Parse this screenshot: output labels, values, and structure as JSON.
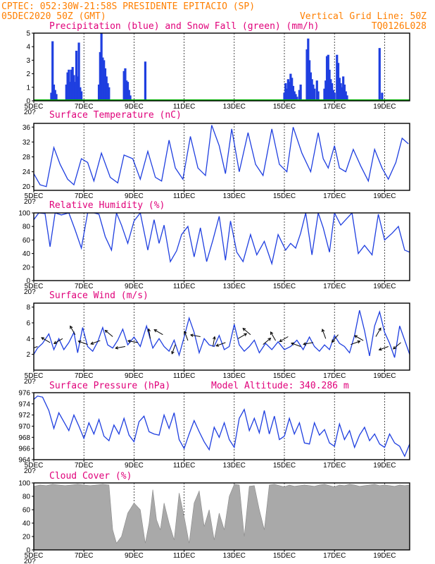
{
  "header": {
    "source_line": "CPTEC:  052:30W-21:58S  PRESIDENTE EPITACIO (SP)",
    "date_line": "05DEC2020 50Z (GMT)",
    "grid_note": "Vertical Grid Line: 50Z",
    "code": "TQ0126L028"
  },
  "x_axis": {
    "start_day": "5DEC",
    "end_day": "20DEC",
    "tick_labels": [
      "5DEC",
      "7DEC",
      "9DEC",
      "11DEC",
      "13DEC",
      "15DEC",
      "17DEC",
      "19DEC"
    ],
    "overlap_fragment": "20?"
  },
  "colors": {
    "header": "#ff7f00",
    "panel_title": "#e0007a",
    "precip": "#1f3fe0",
    "snow": "#00b000",
    "line": "#1f3fe0",
    "cloud": "#a9a9a9",
    "arrow": "#000000"
  },
  "chart_data": [
    {
      "type": "bar",
      "title": "Precipitation (blue) and Snow Fall (green) (mm/h)",
      "ylim": [
        0,
        5
      ],
      "yticks": [
        0,
        1,
        2,
        3,
        4,
        5
      ],
      "x_start_day": 5,
      "x_end_day": 20,
      "series": [
        {
          "name": "Precipitation",
          "x": [
            5.7,
            5.75,
            5.8,
            5.85,
            5.9,
            6.3,
            6.35,
            6.4,
            6.45,
            6.5,
            6.55,
            6.6,
            6.65,
            6.7,
            6.75,
            6.8,
            6.85,
            6.9,
            7.6,
            7.65,
            7.7,
            7.75,
            7.8,
            7.85,
            7.9,
            7.95,
            8.0,
            8.6,
            8.65,
            8.7,
            8.75,
            8.8,
            8.85,
            9.45,
            15.0,
            15.05,
            15.1,
            15.15,
            15.2,
            15.25,
            15.3,
            15.35,
            15.4,
            15.45,
            15.5,
            15.6,
            15.65,
            15.9,
            15.95,
            16.0,
            16.05,
            16.1,
            16.15,
            16.2,
            16.3,
            16.35,
            16.6,
            16.65,
            16.7,
            16.75,
            16.8,
            16.85,
            16.9,
            16.95,
            17.0,
            17.1,
            17.15,
            17.2,
            17.25,
            17.3,
            17.35,
            17.4,
            17.45,
            17.5,
            18.8,
            18.9
          ],
          "values": [
            0.6,
            4.4,
            1.2,
            0.8,
            0.5,
            1.2,
            2.1,
            2.3,
            1.4,
            2.3,
            2.5,
            1.9,
            1.4,
            3.7,
            1.8,
            4.3,
            1.0,
            0.7,
            1.2,
            3.6,
            5.0,
            3.2,
            3.0,
            2.4,
            1.8,
            1.3,
            1.0,
            2.2,
            2.4,
            1.5,
            1.4,
            0.8,
            0.4,
            2.9,
            0.6,
            1.3,
            0.9,
            1.6,
            1.4,
            2.0,
            1.7,
            1.1,
            0.7,
            0.5,
            0.3,
            0.8,
            1.2,
            3.8,
            4.6,
            3.0,
            2.1,
            1.6,
            1.2,
            0.9,
            1.5,
            0.7,
            0.9,
            1.5,
            3.3,
            3.4,
            2.3,
            1.6,
            1.3,
            0.8,
            0.6,
            3.4,
            2.8,
            1.7,
            1.3,
            1.0,
            1.8,
            1.2,
            0.7,
            0.4,
            3.9,
            0.6
          ]
        },
        {
          "name": "Snow Fall",
          "x": [
            5.0,
            20.0
          ],
          "values": [
            0.0,
            0.0
          ]
        }
      ]
    },
    {
      "type": "line",
      "title": "Surface Temperature (nC)",
      "ylim": [
        19,
        37
      ],
      "yticks": [
        20,
        24,
        28,
        32,
        36
      ],
      "x_start_day": 5,
      "x_end_day": 20,
      "x": [
        5.0,
        5.25,
        5.5,
        5.8,
        6.05,
        6.35,
        6.6,
        6.9,
        7.15,
        7.4,
        7.7,
        8.05,
        8.35,
        8.6,
        8.95,
        9.25,
        9.55,
        9.85,
        10.1,
        10.4,
        10.65,
        10.95,
        11.25,
        11.55,
        11.85,
        12.1,
        12.4,
        12.65,
        12.9,
        13.2,
        13.55,
        13.85,
        14.15,
        14.5,
        14.8,
        15.1,
        15.35,
        15.7,
        16.05,
        16.35,
        16.55,
        16.75,
        17.0,
        17.2,
        17.45,
        17.75,
        18.05,
        18.35,
        18.6,
        18.9,
        19.15,
        19.45,
        19.7,
        19.95
      ],
      "values": [
        23.5,
        20.5,
        20.0,
        30.5,
        26.0,
        22.0,
        20.5,
        27.5,
        26.5,
        21.5,
        29.0,
        22.5,
        21.0,
        28.5,
        27.5,
        22.0,
        29.5,
        22.5,
        21.5,
        32.5,
        25.0,
        22.0,
        33.5,
        25.0,
        23.0,
        36.5,
        31.0,
        23.5,
        35.5,
        24.0,
        34.5,
        26.0,
        23.0,
        35.5,
        26.0,
        24.0,
        36.0,
        29.0,
        24.0,
        34.5,
        27.5,
        25.0,
        31.0,
        25.0,
        24.0,
        30.0,
        25.5,
        21.5,
        30.0,
        25.0,
        22.0,
        26.5,
        33.0,
        31.5
      ]
    },
    {
      "type": "line",
      "title": "Relative Humidity (%)",
      "ylim": [
        0,
        100
      ],
      "yticks": [
        0,
        20,
        40,
        60,
        80,
        100
      ],
      "x_start_day": 5,
      "x_end_day": 20,
      "x": [
        5.0,
        5.2,
        5.45,
        5.65,
        5.85,
        6.1,
        6.4,
        6.65,
        6.9,
        7.15,
        7.4,
        7.6,
        7.85,
        8.1,
        8.3,
        8.5,
        8.75,
        9.0,
        9.25,
        9.55,
        9.8,
        10.0,
        10.2,
        10.45,
        10.7,
        10.9,
        11.15,
        11.4,
        11.65,
        11.9,
        12.15,
        12.4,
        12.65,
        12.85,
        13.1,
        13.35,
        13.65,
        13.9,
        14.2,
        14.5,
        14.75,
        15.05,
        15.25,
        15.45,
        15.65,
        15.85,
        16.1,
        16.35,
        16.55,
        16.8,
        17.0,
        17.25,
        17.5,
        17.7,
        17.95,
        18.2,
        18.5,
        18.75,
        19.0,
        19.3,
        19.55,
        19.8,
        20.0
      ],
      "values": [
        90,
        100,
        99,
        50,
        100,
        97,
        100,
        75,
        48,
        100,
        100,
        98,
        65,
        45,
        100,
        82,
        55,
        88,
        100,
        45,
        90,
        55,
        82,
        28,
        44,
        68,
        80,
        35,
        78,
        28,
        60,
        95,
        30,
        88,
        42,
        28,
        68,
        38,
        58,
        25,
        68,
        45,
        55,
        48,
        70,
        100,
        38,
        100,
        78,
        42,
        100,
        82,
        92,
        100,
        40,
        52,
        38,
        98,
        60,
        70,
        80,
        45,
        42
      ]
    },
    {
      "type": "line",
      "title": "Surface Wind (m/s)",
      "ylim": [
        0,
        8.5
      ],
      "yticks": [
        2,
        4,
        6,
        8
      ],
      "x_start_day": 5,
      "x_end_day": 20,
      "x": [
        5.0,
        5.15,
        5.35,
        5.6,
        5.8,
        6.0,
        6.2,
        6.4,
        6.6,
        6.75,
        6.95,
        7.15,
        7.35,
        7.55,
        7.75,
        7.95,
        8.15,
        8.35,
        8.55,
        8.75,
        9.0,
        9.25,
        9.5,
        9.75,
        10.0,
        10.2,
        10.4,
        10.6,
        10.8,
        11.0,
        11.2,
        11.4,
        11.6,
        11.8,
        12.0,
        12.2,
        12.4,
        12.6,
        12.8,
        13.0,
        13.2,
        13.4,
        13.6,
        13.8,
        14.0,
        14.25,
        14.5,
        14.75,
        15.0,
        15.25,
        15.5,
        15.75,
        16.0,
        16.2,
        16.4,
        16.6,
        16.8,
        17.0,
        17.2,
        17.4,
        17.6,
        17.8,
        18.0,
        18.2,
        18.4,
        18.6,
        18.8,
        19.0,
        19.2,
        19.4,
        19.6,
        19.8,
        20.0
      ],
      "values": [
        2.0,
        2.8,
        3.4,
        4.6,
        2.6,
        4.0,
        2.6,
        3.5,
        4.8,
        2.2,
        5.4,
        3.0,
        2.4,
        3.6,
        5.4,
        3.2,
        2.8,
        3.8,
        5.2,
        3.2,
        4.2,
        3.0,
        5.6,
        2.8,
        4.0,
        3.0,
        2.4,
        3.8,
        1.9,
        4.2,
        6.6,
        4.8,
        2.2,
        4.0,
        3.2,
        3.0,
        4.4,
        2.6,
        3.0,
        5.8,
        3.2,
        2.4,
        3.0,
        3.8,
        2.2,
        3.4,
        2.6,
        3.6,
        2.6,
        3.0,
        3.8,
        2.6,
        4.2,
        3.0,
        2.4,
        3.2,
        2.6,
        4.4,
        3.4,
        3.0,
        2.2,
        4.4,
        7.6,
        5.0,
        1.8,
        5.6,
        7.4,
        4.8,
        3.4,
        1.6,
        5.6,
        3.8,
        2.0
      ]
    },
    {
      "type": "line",
      "title": "Surface Pressure (hPa)",
      "annotation": "Model Altitude: 340.286 m",
      "ylim": [
        964,
        976
      ],
      "yticks": [
        964,
        966,
        968,
        970,
        972,
        974,
        976
      ],
      "x_start_day": 5,
      "x_end_day": 20,
      "x": [
        5.0,
        5.15,
        5.35,
        5.6,
        5.8,
        6.0,
        6.2,
        6.4,
        6.6,
        6.8,
        7.0,
        7.2,
        7.4,
        7.6,
        7.8,
        8.0,
        8.2,
        8.4,
        8.6,
        8.8,
        9.0,
        9.2,
        9.4,
        9.6,
        9.8,
        10.0,
        10.2,
        10.4,
        10.6,
        10.8,
        11.0,
        11.2,
        11.4,
        11.6,
        11.8,
        12.0,
        12.2,
        12.4,
        12.6,
        12.8,
        13.0,
        13.2,
        13.4,
        13.6,
        13.8,
        14.0,
        14.2,
        14.4,
        14.6,
        14.8,
        15.0,
        15.2,
        15.4,
        15.6,
        15.8,
        16.0,
        16.2,
        16.4,
        16.6,
        16.8,
        17.0,
        17.2,
        17.4,
        17.6,
        17.8,
        18.0,
        18.2,
        18.4,
        18.6,
        18.8,
        19.0,
        19.2,
        19.4,
        19.6,
        19.8,
        20.0
      ],
      "values": [
        974.8,
        975.4,
        975.2,
        972.8,
        969.6,
        972.4,
        970.8,
        969.2,
        972.0,
        970.0,
        967.8,
        970.6,
        968.6,
        971.2,
        968.2,
        967.4,
        970.2,
        968.6,
        971.4,
        968.4,
        967.2,
        970.8,
        971.8,
        969.0,
        968.6,
        968.4,
        972.0,
        969.6,
        972.4,
        967.6,
        966.0,
        968.6,
        971.0,
        969.0,
        967.2,
        965.8,
        969.8,
        968.0,
        970.6,
        967.6,
        966.2,
        971.4,
        973.0,
        969.2,
        971.4,
        968.8,
        972.8,
        968.6,
        971.8,
        967.6,
        968.2,
        971.4,
        968.6,
        970.6,
        967.0,
        966.8,
        970.6,
        968.4,
        969.4,
        967.0,
        966.4,
        970.4,
        967.6,
        969.2,
        966.2,
        968.4,
        969.8,
        967.4,
        968.6,
        966.8,
        966.2,
        968.6,
        967.0,
        966.4,
        964.6,
        966.8
      ]
    },
    {
      "type": "area",
      "title": "Cloud Cover (%)",
      "ylim": [
        0,
        100
      ],
      "yticks": [
        0,
        20,
        40,
        60,
        80,
        100
      ],
      "x_start_day": 5,
      "x_end_day": 20,
      "x": [
        5.0,
        5.25,
        5.5,
        5.75,
        6.0,
        6.25,
        6.5,
        6.75,
        7.0,
        7.25,
        7.5,
        7.75,
        8.0,
        8.15,
        8.3,
        8.5,
        8.75,
        9.0,
        9.25,
        9.45,
        9.6,
        9.75,
        9.9,
        10.05,
        10.2,
        10.4,
        10.6,
        10.8,
        11.0,
        11.2,
        11.4,
        11.6,
        11.8,
        12.0,
        12.2,
        12.4,
        12.6,
        12.8,
        13.0,
        13.2,
        13.4,
        13.6,
        13.8,
        14.0,
        14.2,
        14.4,
        14.6,
        14.8,
        15.0,
        15.2,
        15.4,
        15.6,
        15.8,
        16.0,
        16.2,
        16.4,
        16.6,
        16.8,
        17.0,
        17.2,
        17.4,
        17.6,
        17.8,
        18.0,
        18.2,
        18.4,
        18.6,
        18.8,
        19.0,
        19.2,
        19.4,
        19.6,
        19.8,
        20.0
      ],
      "values": [
        95,
        97,
        96,
        98,
        97,
        96,
        97,
        98,
        97,
        96,
        97,
        98,
        97,
        30,
        10,
        20,
        55,
        70,
        60,
        10,
        40,
        90,
        45,
        30,
        70,
        40,
        15,
        85,
        50,
        10,
        70,
        88,
        35,
        60,
        15,
        55,
        30,
        80,
        98,
        97,
        20,
        95,
        96,
        60,
        30,
        97,
        98,
        96,
        94,
        97,
        95,
        96,
        97,
        96,
        95,
        97,
        98,
        96,
        94,
        97,
        96,
        98,
        97,
        95,
        96,
        97,
        98,
        96,
        97,
        96,
        95,
        97,
        96,
        97
      ]
    }
  ]
}
